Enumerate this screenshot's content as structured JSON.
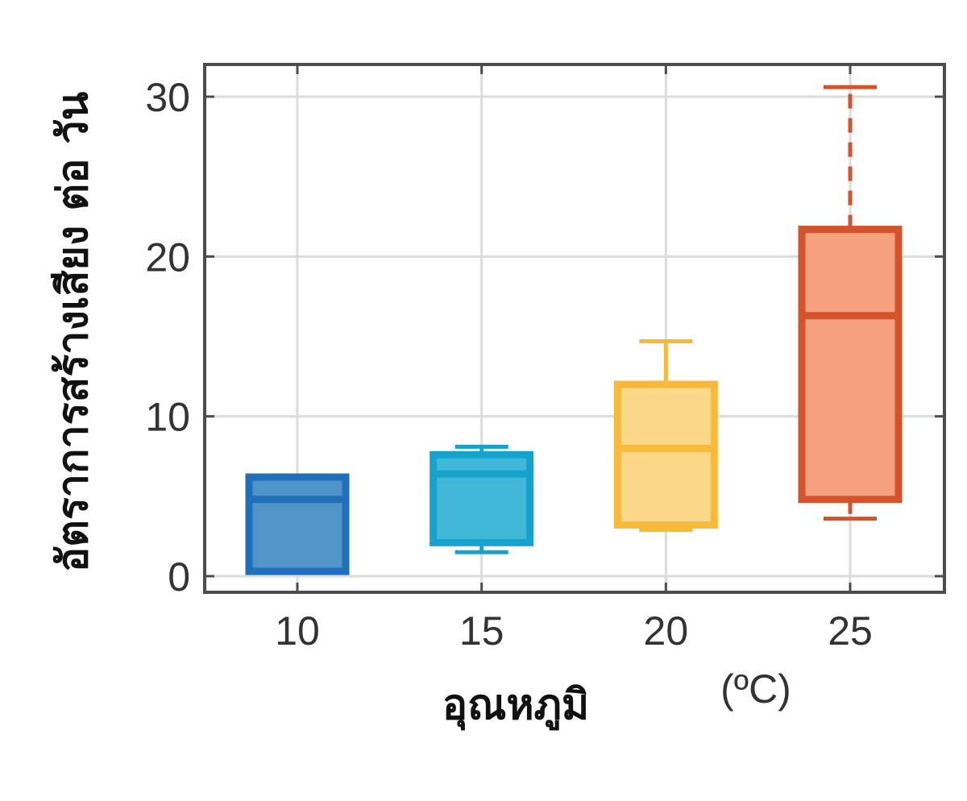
{
  "chart_data": {
    "type": "box",
    "title": "",
    "xlabel": "อุณหภูมิ",
    "xunit": "(ºC)",
    "ylabel": "อัตราการสร้างเสียง ต่อ วัน",
    "categories": [
      "10",
      "15",
      "20",
      "25"
    ],
    "ylim": [
      -1,
      32
    ],
    "yticks": [
      0,
      10,
      20,
      30
    ],
    "grid": true,
    "boxes": [
      {
        "category": "10",
        "whisker_low": 0.3,
        "q1": 0.3,
        "median": 4.8,
        "q3": 6.2,
        "whisker_high": 6.3,
        "color": "#1f6fba",
        "fill": "#4f95c8"
      },
      {
        "category": "15",
        "whisker_low": 1.5,
        "q1": 2.1,
        "median": 6.4,
        "q3": 7.6,
        "whisker_high": 8.1,
        "color": "#14a3cf",
        "fill": "#41b8d8"
      },
      {
        "category": "20",
        "whisker_low": 2.9,
        "q1": 3.2,
        "median": 8.0,
        "q3": 12.0,
        "whisker_high": 14.7,
        "color": "#f8b93a",
        "fill": "#fcd88b"
      },
      {
        "category": "25",
        "whisker_low": 3.6,
        "q1": 4.8,
        "median": 16.3,
        "q3": 21.7,
        "whisker_high": 30.6,
        "color": "#d5532a",
        "fill": "#f5a07e",
        "dashed_whisker": true
      }
    ]
  }
}
